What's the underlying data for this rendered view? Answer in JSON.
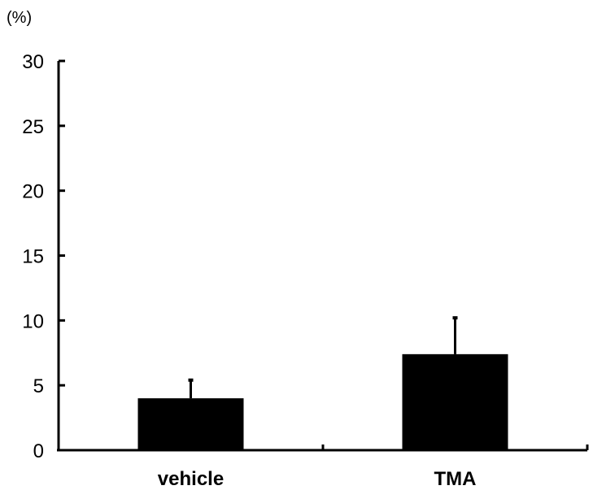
{
  "chart_data": {
    "type": "bar",
    "categories": [
      "vehicle",
      "TMA"
    ],
    "values": [
      4.0,
      7.4
    ],
    "error_bars": [
      1.4,
      2.8
    ],
    "ylabel": "(%)",
    "xlabel": "",
    "ylim": [
      0,
      30
    ],
    "yticks": [
      "0",
      "5",
      "10",
      "15",
      "20",
      "25",
      "30"
    ],
    "grid": false,
    "bar_color": "#000000"
  }
}
